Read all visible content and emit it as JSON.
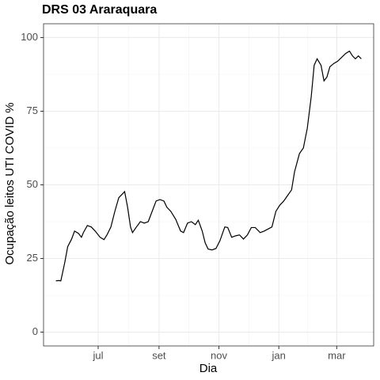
{
  "chart_data": {
    "type": "line",
    "title": "DRS 03 Araraquara",
    "x_label": "Dia",
    "y_label": "Ocupação leitos UTI COVID %",
    "x": [
      -43,
      -40,
      -38,
      -34,
      -31,
      -27,
      -24,
      -20,
      -17,
      -15,
      -11,
      -7,
      -3,
      2,
      6,
      9,
      13,
      17,
      21,
      27,
      30,
      33,
      35,
      39,
      43,
      47,
      51,
      55,
      59,
      63,
      67,
      70,
      74,
      79,
      84,
      87,
      91,
      95,
      99,
      102,
      106,
      109,
      112,
      116,
      120,
      124,
      129,
      132,
      136,
      140,
      144,
      148,
      152,
      156,
      160,
      165,
      169,
      173,
      177,
      181,
      185,
      189,
      193,
      197,
      200,
      205,
      209,
      213,
      217,
      220,
      223,
      227,
      230,
      233,
      236,
      240,
      244,
      248,
      252,
      256,
      259,
      262,
      265,
      268
    ],
    "values": [
      17.4,
      17.5,
      17.4,
      23.6,
      29,
      31.6,
      34.3,
      33.5,
      32.2,
      33.8,
      36.2,
      35.7,
      34.3,
      32.2,
      31.4,
      33,
      35.7,
      41,
      45.6,
      47.7,
      42.4,
      35.7,
      33.8,
      35.7,
      37.5,
      37,
      37.5,
      41,
      44.5,
      45,
      44.5,
      42.4,
      41,
      38.3,
      34.3,
      33.8,
      37,
      37.5,
      36.5,
      38,
      34.3,
      30.3,
      28.2,
      27.9,
      28.4,
      31,
      35.7,
      35.5,
      32.2,
      32.7,
      33,
      31.6,
      33,
      35.5,
      35.5,
      33.8,
      34.3,
      35,
      35.7,
      41,
      43.1,
      44.5,
      46.4,
      48.3,
      54.4,
      60.6,
      62.5,
      69.2,
      79.9,
      90.6,
      92.8,
      90.6,
      85.3,
      86.6,
      90.1,
      91.2,
      92,
      93.3,
      94.6,
      95.4,
      93.8,
      92.8,
      93.8,
      92.8
    ],
    "color": "#000000",
    "xlim": [
      -55.6,
      280.6
    ],
    "xticks": [
      {
        "value": 0,
        "label": "jul"
      },
      {
        "value": 62,
        "label": "set"
      },
      {
        "value": 123,
        "label": "nov"
      },
      {
        "value": 184,
        "label": "jan"
      },
      {
        "value": 243,
        "label": "mar"
      }
    ],
    "ylim": [
      -4.7,
      104.7
    ],
    "yticks": [
      0,
      25,
      50,
      75,
      100
    ],
    "grid": true
  }
}
